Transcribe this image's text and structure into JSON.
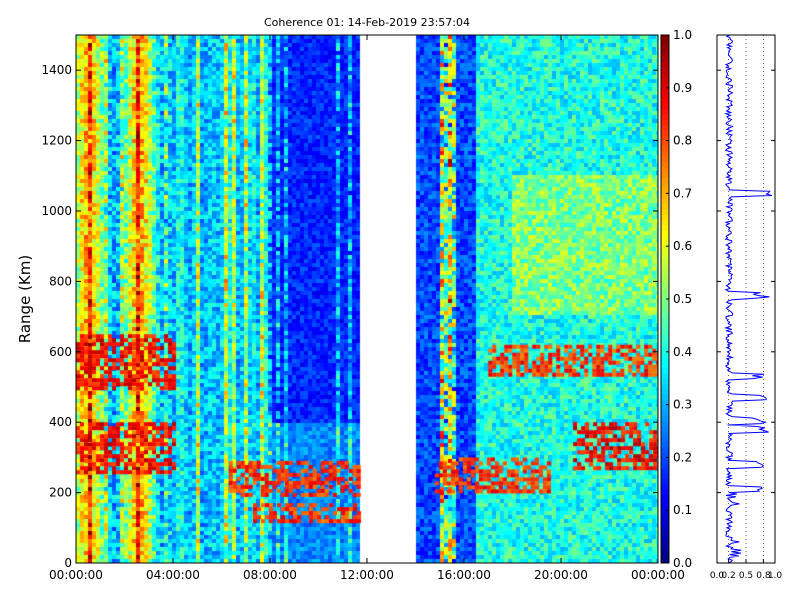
{
  "chart_data": [
    {
      "type": "heatmap",
      "title": "Coherence 01: 14-Feb-2019 23:57:04",
      "xlabel": "",
      "ylabel": "Range (Km)",
      "x_tick_labels": [
        "00:00:00",
        "04:00:00",
        "08:00:00",
        "12:00:00",
        "16:00:00",
        "20:00:00",
        "00:00:00"
      ],
      "x_range_hours": [
        0,
        24
      ],
      "y_ticks": [
        0,
        200,
        400,
        600,
        800,
        1000,
        1200,
        1400
      ],
      "y_range": [
        0,
        1500
      ],
      "colormap": "jet",
      "value_range": [
        0,
        1
      ],
      "colorbar_ticks": [
        "0.0",
        "0.1",
        "0.2",
        "0.3",
        "0.4",
        "0.5",
        "0.6",
        "0.7",
        "0.8",
        "0.9",
        "1.0"
      ],
      "data_gap_hours": [
        11.7,
        14.0
      ],
      "high_coherence_features": [
        {
          "label": "arc near 600 km",
          "hours": [
            0,
            4
          ],
          "range_km": [
            500,
            650
          ],
          "value": 0.95
        },
        {
          "label": "trace near 300 km",
          "hours": [
            0,
            4
          ],
          "range_km": [
            260,
            400
          ],
          "value": 0.95
        },
        {
          "label": "descending trace",
          "hours": [
            6.3,
            11.7
          ],
          "range_km": [
            190,
            290
          ],
          "value": 0.9
        },
        {
          "label": "low band",
          "hours": [
            7.3,
            11.7
          ],
          "range_km": [
            120,
            170
          ],
          "value": 0.9
        },
        {
          "label": "arc near 300 km",
          "hours": [
            14.8,
            19.5
          ],
          "range_km": [
            200,
            300
          ],
          "value": 0.9
        },
        {
          "label": "trace near 600 km",
          "hours": [
            17,
            24
          ],
          "range_km": [
            540,
            620
          ],
          "value": 0.9
        },
        {
          "label": "patch 280-400 km",
          "hours": [
            20.5,
            24
          ],
          "range_km": [
            270,
            400
          ],
          "value": 0.95
        }
      ]
    },
    {
      "type": "line",
      "title": "",
      "xlabel": "",
      "ylabel": "",
      "x_ticks": [
        "0.0",
        "0.2",
        "0.5",
        "0.8",
        "1.0"
      ],
      "x_range": [
        0,
        1
      ],
      "y_range": [
        0,
        1500
      ],
      "grid": "dotted vertical",
      "series_color": "#0000ff",
      "peaks_range_km": [
        210,
        280,
        380,
        405,
        470,
        530,
        760,
        1050
      ]
    }
  ]
}
